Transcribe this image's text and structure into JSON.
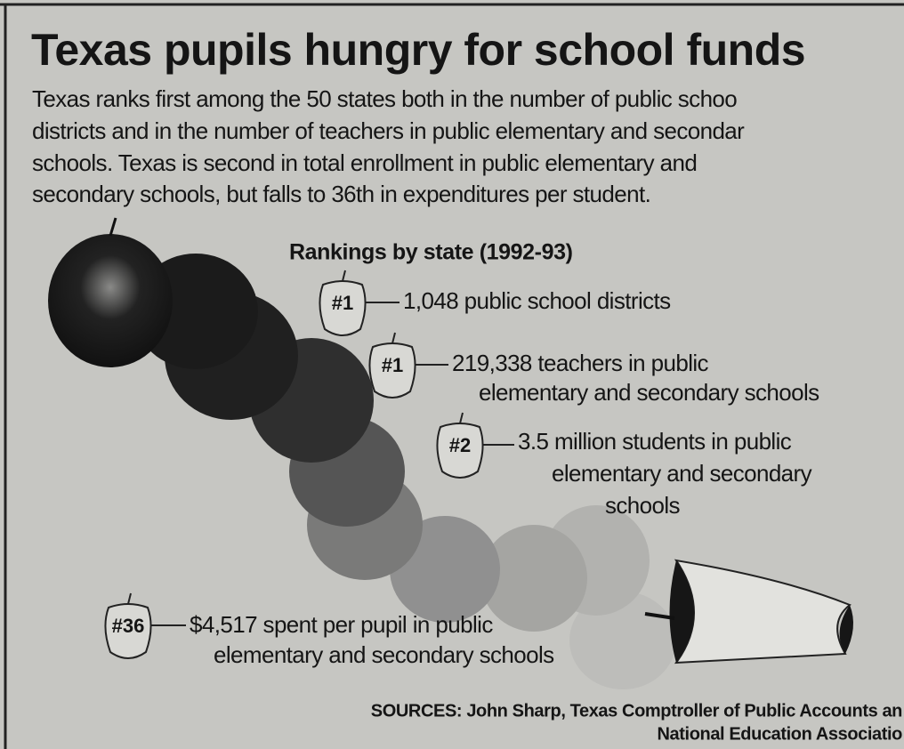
{
  "title": "Texas pupils hungry for school funds",
  "intro": [
    "Texas ranks first among the 50 states both in the number of public schoo",
    "districts and in the number of teachers in public elementary and secondar",
    "schools. Texas is second in total enrollment in public elementary and",
    "secondary schools, but falls to 36th in expenditures per student."
  ],
  "rankings": {
    "heading": "Rankings by state (1992-93)",
    "items": [
      {
        "rank": "#1",
        "lines": [
          "1,048 public school districts"
        ]
      },
      {
        "rank": "#1",
        "lines": [
          "219,338 teachers in public",
          "elementary and secondary schools"
        ]
      },
      {
        "rank": "#2",
        "lines": [
          "3.5 million students in public",
          "elementary and secondary",
          "schools"
        ]
      },
      {
        "rank": "#36",
        "lines": [
          "$4,517 spent per pupil in public",
          "elementary and secondary schools"
        ]
      }
    ]
  },
  "sources": [
    "SOURCES: John Sharp, Texas Comptroller of Public Accounts an",
    "National Education Associatio"
  ]
}
